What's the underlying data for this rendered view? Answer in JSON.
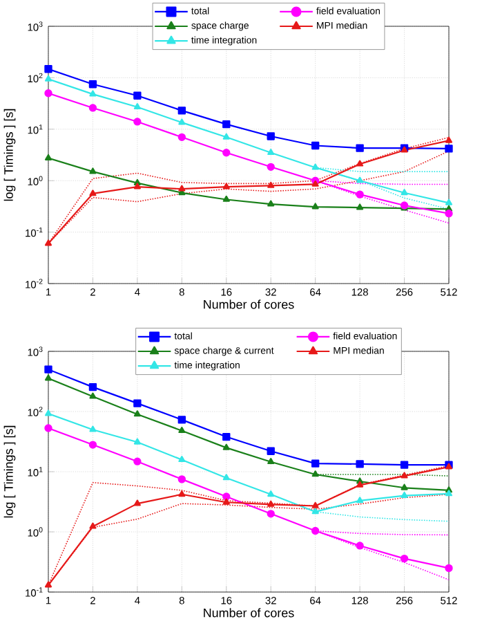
{
  "chart_data": [
    {
      "type": "line",
      "xlabel": "Number of cores",
      "ylabel": "log [ Timings ] [s]",
      "categories": [
        "1",
        "2",
        "4",
        "8",
        "16",
        "32",
        "64",
        "128",
        "256",
        "512"
      ],
      "log": "y",
      "grid": true,
      "legend": "top",
      "ylim": [
        0.01,
        1000
      ],
      "yticks": [
        {
          "value": 0.01,
          "label": "10$^{-2}$"
        },
        {
          "value": 0.1,
          "label": "10$^{-1}$"
        },
        {
          "value": 1,
          "label": "10$^{0}$"
        },
        {
          "value": 10,
          "label": "10$^{1}$"
        },
        {
          "value": 100,
          "label": "10$^{2}$"
        },
        {
          "value": 1000,
          "label": "10$^{3}$"
        }
      ],
      "series": [
        {
          "color": "#e61919",
          "marker": "none",
          "line_style": "dotted",
          "values": [
            0.06,
            1.1,
            1.4,
            0.92,
            0.88,
            0.88,
            1.0,
            2.15,
            4.2,
            6.9
          ]
        },
        {
          "color": "#e61919",
          "marker": "none",
          "line_style": "dotted",
          "values": [
            0.06,
            0.47,
            0.39,
            0.56,
            0.69,
            0.62,
            0.69,
            1.0,
            1.5,
            3.75
          ]
        },
        {
          "color": "#33e6e6",
          "marker": "none",
          "line_style": "dotted",
          "values": [
            null,
            null,
            null,
            null,
            null,
            null,
            1.8,
            1.5,
            1.5,
            1.5
          ]
        },
        {
          "color": "#33e6e6",
          "marker": "none",
          "line_style": "dotted",
          "values": [
            null,
            null,
            null,
            null,
            null,
            null,
            1.8,
            1.0,
            0.46,
            0.28
          ]
        },
        {
          "color": "#ff00ff",
          "marker": "none",
          "line_style": "dotted",
          "values": [
            null,
            null,
            null,
            null,
            null,
            null,
            1.0,
            0.88,
            0.85,
            0.85
          ]
        },
        {
          "color": "#ff00ff",
          "marker": "none",
          "line_style": "dotted",
          "values": [
            null,
            null,
            null,
            null,
            null,
            null,
            1.0,
            0.5,
            0.27,
            0.15
          ]
        },
        {
          "name": "total",
          "color": "#0000ff",
          "marker": "square",
          "line_style": "solid",
          "values": [
            148,
            75,
            45,
            23,
            12.5,
            7.3,
            4.8,
            4.3,
            4.3,
            4.2
          ]
        },
        {
          "name": "space charge",
          "color": "#1a801a",
          "marker": "triangle",
          "line_style": "solid",
          "values": [
            2.75,
            1.5,
            0.9,
            0.58,
            0.43,
            0.35,
            0.31,
            0.3,
            0.29,
            0.28
          ]
        },
        {
          "name": "time integration",
          "color": "#33e6e6",
          "marker": "triangle",
          "line_style": "solid",
          "values": [
            94,
            48,
            27,
            13.5,
            7,
            3.5,
            1.8,
            1.0,
            0.58,
            0.37
          ]
        },
        {
          "name": "field evaluation",
          "color": "#ff00ff",
          "marker": "circle",
          "line_style": "solid",
          "values": [
            50,
            26,
            14,
            7,
            3.5,
            1.85,
            1.0,
            0.54,
            0.33,
            0.23
          ]
        },
        {
          "name": "MPI median",
          "color": "#e61919",
          "marker": "triangle",
          "line_style": "solid",
          "values": [
            0.06,
            0.56,
            0.76,
            0.69,
            0.76,
            0.8,
            0.85,
            2.1,
            3.9,
            6.0
          ]
        }
      ]
    },
    {
      "type": "line",
      "xlabel": "Number of cores",
      "ylabel": "log [ Timings ] [s]",
      "categories": [
        "1",
        "2",
        "4",
        "8",
        "16",
        "32",
        "64",
        "128",
        "256",
        "512"
      ],
      "log": "y",
      "grid": true,
      "legend": "top",
      "ylim": [
        0.1,
        1000
      ],
      "yticks": [
        {
          "value": 0.1,
          "label": "10$^{-1}$"
        },
        {
          "value": 1,
          "label": "10$^{0}$"
        },
        {
          "value": 10,
          "label": "10$^{1}$"
        },
        {
          "value": 100,
          "label": "10$^{2}$"
        },
        {
          "value": 1000,
          "label": "10$^{3}$"
        }
      ],
      "series": [
        {
          "color": "#e61919",
          "marker": "none",
          "line_style": "dotted",
          "values": [
            0.13,
            6.6,
            5.8,
            4.9,
            3.3,
            3.0,
            2.7,
            6.1,
            8.8,
            12.5
          ]
        },
        {
          "color": "#e61919",
          "marker": "none",
          "line_style": "dotted",
          "values": [
            0.13,
            1.19,
            1.63,
            2.95,
            2.8,
            2.55,
            2.38,
            2.9,
            3.7,
            4.2
          ]
        },
        {
          "color": "#1a801a",
          "marker": "none",
          "line_style": "dotted",
          "values": [
            null,
            null,
            null,
            null,
            null,
            null,
            9,
            9,
            9,
            8.5
          ]
        },
        {
          "color": "#33e6e6",
          "marker": "none",
          "line_style": "dotted",
          "values": [
            null,
            null,
            null,
            null,
            null,
            null,
            2.16,
            1.77,
            1.6,
            1.5
          ]
        },
        {
          "color": "#ff00ff",
          "marker": "none",
          "line_style": "dotted",
          "values": [
            null,
            null,
            null,
            null,
            null,
            null,
            1.04,
            0.94,
            0.9,
            0.89
          ]
        },
        {
          "color": "#ff00ff",
          "marker": "none",
          "line_style": "dotted",
          "values": [
            null,
            null,
            null,
            null,
            null,
            null,
            1.04,
            0.55,
            0.31,
            0.16
          ]
        },
        {
          "name": "total",
          "color": "#0000ff",
          "marker": "square",
          "line_style": "solid",
          "values": [
            500,
            255,
            137,
            73,
            38,
            22,
            13.7,
            13.4,
            13,
            13
          ]
        },
        {
          "name": "space charge & current",
          "color": "#1a801a",
          "marker": "triangle",
          "line_style": "solid",
          "values": [
            356,
            178,
            90,
            48,
            25,
            14.6,
            9,
            6.9,
            5.4,
            4.9
          ]
        },
        {
          "name": "time integration",
          "color": "#33e6e6",
          "marker": "triangle",
          "line_style": "solid",
          "values": [
            92,
            50,
            31,
            15.8,
            7.9,
            4.2,
            2.16,
            3.3,
            4.0,
            4.3
          ]
        },
        {
          "name": "field evaluation",
          "color": "#ff00ff",
          "marker": "circle",
          "line_style": "solid",
          "values": [
            53,
            28,
            14.8,
            7.5,
            3.86,
            2.0,
            1.04,
            0.59,
            0.36,
            0.25
          ]
        },
        {
          "name": "MPI median",
          "color": "#e61919",
          "marker": "triangle",
          "line_style": "solid",
          "values": [
            0.13,
            1.23,
            2.95,
            4.2,
            3.1,
            2.86,
            2.7,
            6.0,
            8.5,
            12
          ]
        }
      ]
    }
  ]
}
